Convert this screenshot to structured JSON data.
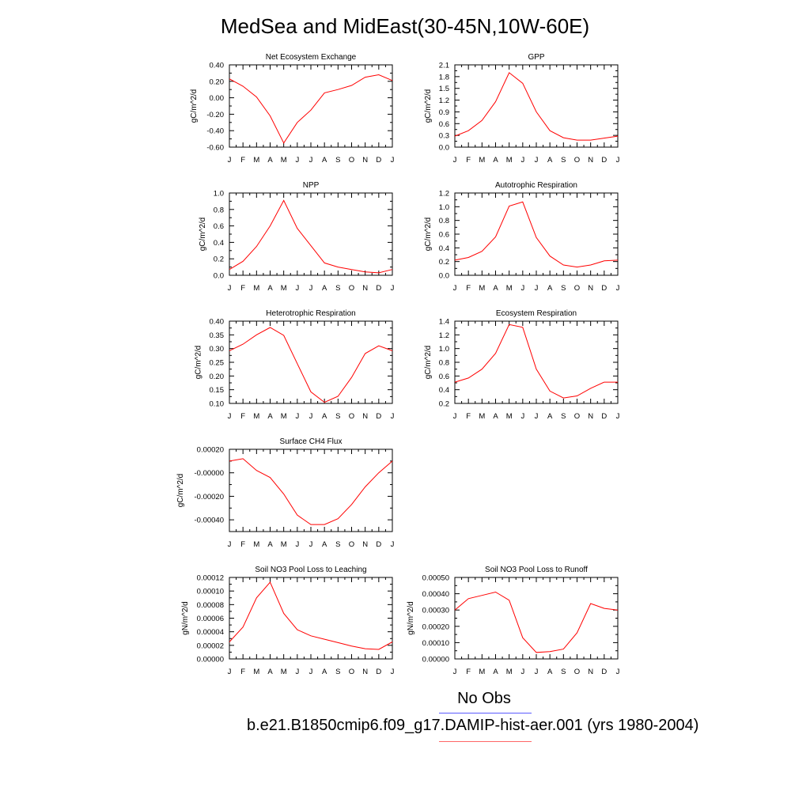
{
  "page": {
    "title": "MedSea and MidEast(30-45N,10W-60E)",
    "legend": {
      "obs_label": "No Obs",
      "obs_color": "#5b5bff",
      "model_label": "b.e21.B1850cmip6.f09_g17.DAMIP-hist-aer.001 (yrs 1980-2004)",
      "model_color": "#ff0000"
    }
  },
  "chart_data": [
    {
      "type": "line",
      "title": "Net Ecosystem Exchange",
      "ylabel": "gC/m^2/d",
      "x": [
        "J",
        "F",
        "M",
        "A",
        "M",
        "J",
        "J",
        "A",
        "S",
        "O",
        "N",
        "D",
        "J"
      ],
      "ylim": [
        -0.6,
        0.4
      ],
      "yticks": [
        -0.6,
        -0.4,
        -0.2,
        0.0,
        0.2,
        0.4
      ],
      "ytick_labels": [
        "-0.60",
        "-0.40",
        "-0.20",
        "0.00",
        "0.20",
        "0.40"
      ],
      "series": [
        {
          "values": [
            0.23,
            0.14,
            0.01,
            -0.22,
            -0.55,
            -0.3,
            -0.15,
            0.06,
            0.1,
            0.15,
            0.25,
            0.28,
            0.21
          ]
        }
      ]
    },
    {
      "type": "line",
      "title": "GPP",
      "ylabel": "gC/m^2/d",
      "x": [
        "J",
        "F",
        "M",
        "A",
        "M",
        "J",
        "J",
        "A",
        "S",
        "O",
        "N",
        "D",
        "J"
      ],
      "ylim": [
        0,
        2.1
      ],
      "yticks": [
        0.0,
        0.3,
        0.6,
        0.9,
        1.2,
        1.5,
        1.8,
        2.1
      ],
      "ytick_labels": [
        "0.0",
        "0.3",
        "0.6",
        "0.9",
        "1.2",
        "1.5",
        "1.8",
        "2.1"
      ],
      "series": [
        {
          "values": [
            0.28,
            0.42,
            0.68,
            1.16,
            1.9,
            1.63,
            0.9,
            0.42,
            0.24,
            0.18,
            0.18,
            0.23,
            0.28
          ]
        }
      ]
    },
    {
      "type": "line",
      "title": "NPP",
      "ylabel": "gC/m^2/d",
      "x": [
        "J",
        "F",
        "M",
        "A",
        "M",
        "J",
        "J",
        "A",
        "S",
        "O",
        "N",
        "D",
        "J"
      ],
      "ylim": [
        0,
        1.0
      ],
      "yticks": [
        0.0,
        0.2,
        0.4,
        0.6,
        0.8,
        1.0
      ],
      "ytick_labels": [
        "0.0",
        "0.2",
        "0.4",
        "0.6",
        "0.8",
        "1.0"
      ],
      "series": [
        {
          "values": [
            0.07,
            0.17,
            0.35,
            0.6,
            0.91,
            0.57,
            0.36,
            0.15,
            0.1,
            0.07,
            0.04,
            0.03,
            0.07
          ]
        }
      ]
    },
    {
      "type": "line",
      "title": "Autotrophic Respiration",
      "ylabel": "gC/m^2/d",
      "x": [
        "J",
        "F",
        "M",
        "A",
        "M",
        "J",
        "J",
        "A",
        "S",
        "O",
        "N",
        "D",
        "J"
      ],
      "ylim": [
        0,
        1.2
      ],
      "yticks": [
        0.0,
        0.2,
        0.4,
        0.6,
        0.8,
        1.0,
        1.2
      ],
      "ytick_labels": [
        "0.0",
        "0.2",
        "0.4",
        "0.6",
        "0.8",
        "1.0",
        "1.2"
      ],
      "series": [
        {
          "values": [
            0.22,
            0.26,
            0.35,
            0.56,
            1.01,
            1.07,
            0.55,
            0.28,
            0.15,
            0.12,
            0.15,
            0.21,
            0.22
          ]
        }
      ]
    },
    {
      "type": "line",
      "title": "Heterotrophic Respiration",
      "ylabel": "gC/m^2/d",
      "x": [
        "J",
        "F",
        "M",
        "A",
        "M",
        "J",
        "J",
        "A",
        "S",
        "O",
        "N",
        "D",
        "J"
      ],
      "ylim": [
        0.1,
        0.4
      ],
      "yticks": [
        0.1,
        0.15,
        0.2,
        0.25,
        0.3,
        0.35,
        0.4
      ],
      "ytick_labels": [
        "0.10",
        "0.15",
        "0.20",
        "0.25",
        "0.30",
        "0.35",
        "0.40"
      ],
      "series": [
        {
          "values": [
            0.292,
            0.316,
            0.35,
            0.377,
            0.348,
            0.245,
            0.142,
            0.104,
            0.126,
            0.195,
            0.282,
            0.31,
            0.292
          ]
        }
      ]
    },
    {
      "type": "line",
      "title": "Ecosystem Respiration",
      "ylabel": "gC/m^2/d",
      "x": [
        "J",
        "F",
        "M",
        "A",
        "M",
        "J",
        "J",
        "A",
        "S",
        "O",
        "N",
        "D",
        "J"
      ],
      "ylim": [
        0.2,
        1.4
      ],
      "yticks": [
        0.2,
        0.4,
        0.6,
        0.8,
        1.0,
        1.2,
        1.4
      ],
      "ytick_labels": [
        "0.2",
        "0.4",
        "0.6",
        "0.8",
        "1.0",
        "1.2",
        "1.4"
      ],
      "series": [
        {
          "values": [
            0.51,
            0.57,
            0.7,
            0.93,
            1.35,
            1.31,
            0.7,
            0.38,
            0.28,
            0.31,
            0.42,
            0.51,
            0.51
          ]
        }
      ]
    },
    {
      "type": "line",
      "title": "Surface CH4 Flux",
      "ylabel": "gC/m^2/d",
      "x": [
        "J",
        "F",
        "M",
        "A",
        "M",
        "J",
        "J",
        "A",
        "S",
        "O",
        "N",
        "D",
        "J"
      ],
      "ylim": [
        -0.0005,
        0.0002
      ],
      "yticks": [
        -0.0004,
        -0.0002,
        0.0,
        0.0002
      ],
      "ytick_labels": [
        "-0.00040",
        "-0.00020",
        "-0.00000",
        "0.00020"
      ],
      "series": [
        {
          "values": [
            0.0001,
            0.00012,
            2e-05,
            -4e-05,
            -0.00018,
            -0.00036,
            -0.00044,
            -0.00044,
            -0.00039,
            -0.00027,
            -0.00012,
            0.0,
            0.0001
          ]
        }
      ]
    },
    {
      "type": "line",
      "title": "Soil NO3 Pool Loss to Leaching",
      "ylabel": "gN/m^2/d",
      "x": [
        "J",
        "F",
        "M",
        "A",
        "M",
        "J",
        "J",
        "A",
        "S",
        "O",
        "N",
        "D",
        "J"
      ],
      "ylim": [
        0,
        0.00012
      ],
      "yticks": [
        0.0,
        2e-05,
        4e-05,
        6e-05,
        8e-05,
        0.0001,
        0.00012
      ],
      "ytick_labels": [
        "0.00000",
        "0.00002",
        "0.00004",
        "0.00006",
        "0.00008",
        "0.00010",
        "0.00012"
      ],
      "series": [
        {
          "values": [
            2.5e-05,
            4.7e-05,
            9e-05,
            0.000113,
            6.7e-05,
            4.3e-05,
            3.4e-05,
            2.9e-05,
            2.4e-05,
            1.9e-05,
            1.5e-05,
            1.4e-05,
            2.5e-05
          ]
        }
      ]
    },
    {
      "type": "line",
      "title": "Soil NO3 Pool Loss to Runoff",
      "ylabel": "gN/m^2/d",
      "x": [
        "J",
        "F",
        "M",
        "A",
        "M",
        "J",
        "J",
        "A",
        "S",
        "O",
        "N",
        "D",
        "J"
      ],
      "ylim": [
        0,
        0.0005
      ],
      "yticks": [
        0.0,
        0.0001,
        0.0002,
        0.0003,
        0.0004,
        0.0005
      ],
      "ytick_labels": [
        "0.00000",
        "0.00010",
        "0.00020",
        "0.00030",
        "0.00040",
        "0.00050"
      ],
      "series": [
        {
          "values": [
            0.0003,
            0.00037,
            0.00039,
            0.00041,
            0.00036,
            0.00013,
            4e-05,
            4.5e-05,
            6e-05,
            0.00016,
            0.00034,
            0.00031,
            0.0003
          ]
        }
      ]
    }
  ]
}
